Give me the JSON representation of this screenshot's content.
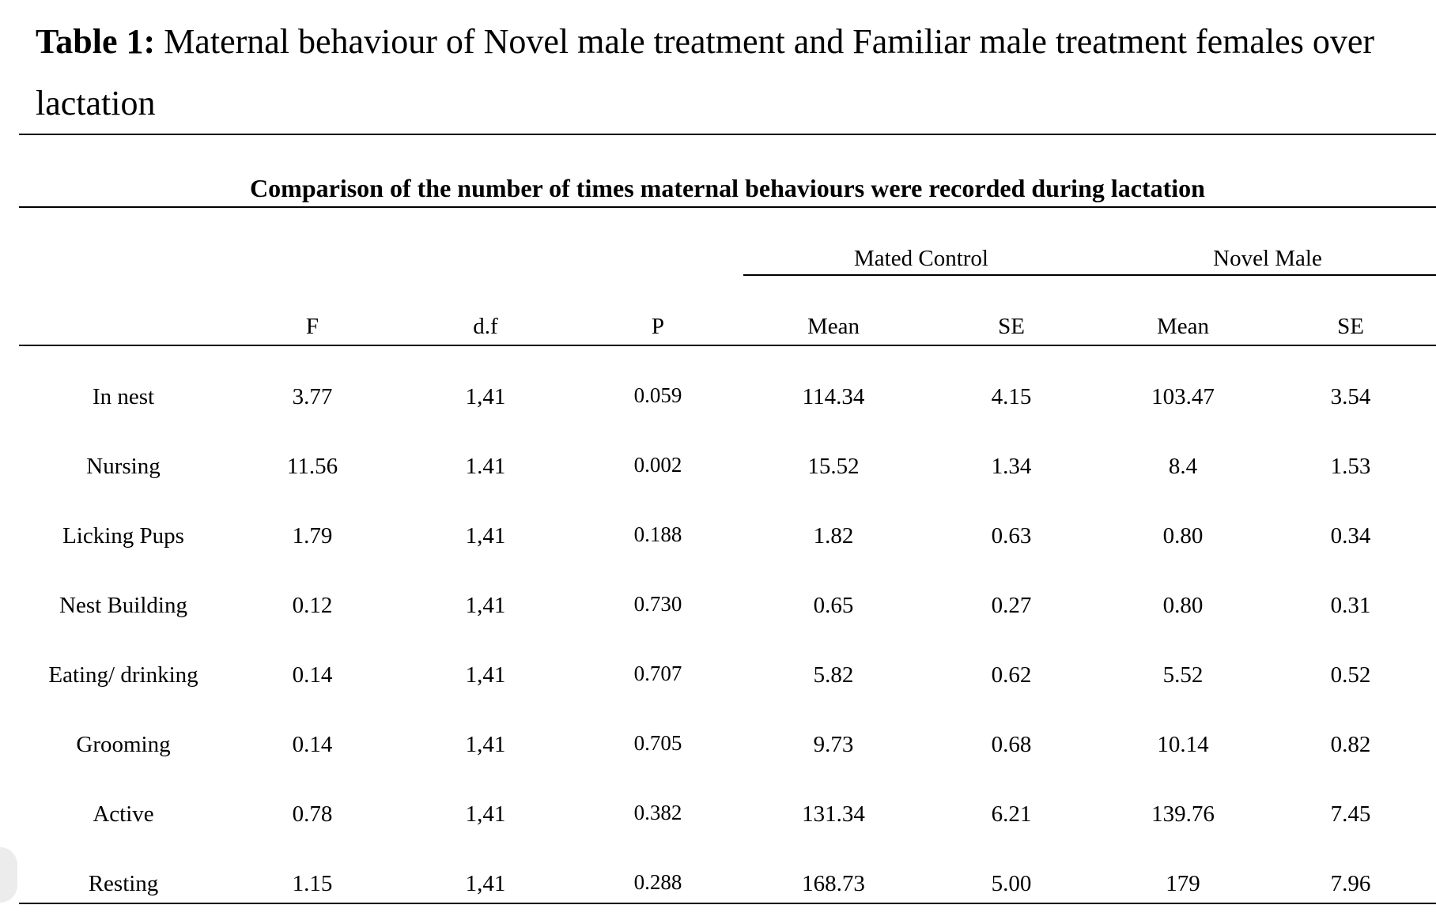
{
  "caption": {
    "label": "Table 1:",
    "text": " Maternal behaviour of Novel male treatment and Familiar male treatment females over lactation"
  },
  "subtitle": "Comparison of the number of times maternal behaviours were recorded during lactation",
  "groups": {
    "mated_control": "Mated Control",
    "novel_male": "Novel Male"
  },
  "columns": [
    "",
    "F",
    "d.f",
    "P",
    "Mean",
    "SE",
    "Mean",
    "SE"
  ],
  "rows": [
    {
      "behaviour": "In nest",
      "F": "3.77",
      "df": "1,41",
      "P": "0.059",
      "mc_mean": "114.34",
      "mc_se": "4.15",
      "nm_mean": "103.47",
      "nm_se": "3.54"
    },
    {
      "behaviour": "Nursing",
      "F": "11.56",
      "df": "1.41",
      "P": "0.002",
      "mc_mean": "15.52",
      "mc_se": "1.34",
      "nm_mean": "8.4",
      "nm_se": "1.53"
    },
    {
      "behaviour": "Licking Pups",
      "F": "1.79",
      "df": "1,41",
      "P": "0.188",
      "mc_mean": "1.82",
      "mc_se": "0.63",
      "nm_mean": "0.80",
      "nm_se": "0.34"
    },
    {
      "behaviour": "Nest Building",
      "F": "0.12",
      "df": "1,41",
      "P": "0.730",
      "mc_mean": "0.65",
      "mc_se": "0.27",
      "nm_mean": "0.80",
      "nm_se": "0.31"
    },
    {
      "behaviour": "Eating/ drinking",
      "F": "0.14",
      "df": "1,41",
      "P": "0.707",
      "mc_mean": "5.82",
      "mc_se": "0.62",
      "nm_mean": "5.52",
      "nm_se": "0.52"
    },
    {
      "behaviour": "Grooming",
      "F": "0.14",
      "df": "1,41",
      "P": "0.705",
      "mc_mean": "9.73",
      "mc_se": "0.68",
      "nm_mean": "10.14",
      "nm_se": "0.82"
    },
    {
      "behaviour": "Active",
      "F": "0.78",
      "df": "1,41",
      "P": "0.382",
      "mc_mean": "131.34",
      "mc_se": "6.21",
      "nm_mean": "139.76",
      "nm_se": "7.45"
    },
    {
      "behaviour": "Resting",
      "F": "1.15",
      "df": "1,41",
      "P": "0.288",
      "mc_mean": "168.73",
      "mc_se": "5.00",
      "nm_mean": "179",
      "nm_se": "7.96"
    }
  ]
}
